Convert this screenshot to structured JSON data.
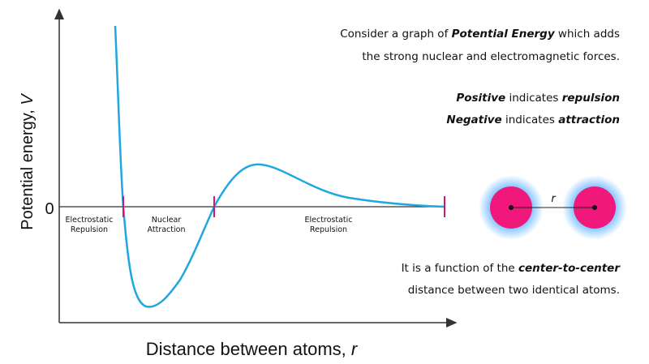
{
  "axes": {
    "y_label": [
      "Potential energy, ",
      "V"
    ],
    "x_label": [
      "Distance between atoms, ",
      "r"
    ],
    "zero_label": "0"
  },
  "regions": [
    {
      "line1": "Electrostatic",
      "line2": "Repulsion"
    },
    {
      "line1": "Nuclear",
      "line2": "Attraction"
    },
    {
      "line1": "Electrostatic",
      "line2": "Repulsion"
    }
  ],
  "description": {
    "intro": [
      [
        "Consider a graph of ",
        "Potential Energy",
        " which adds"
      ],
      [
        "the strong nuclear and electromagnetic forces."
      ]
    ],
    "positive": [
      "Positive",
      " indicates ",
      "repulsion"
    ],
    "negative": [
      "Negative",
      " indicates ",
      "attraction"
    ],
    "function": [
      [
        "It is a function of the ",
        "center-to-center"
      ],
      [
        "distance between two identical atoms."
      ]
    ]
  },
  "atoms": {
    "distance_label": "r"
  }
}
